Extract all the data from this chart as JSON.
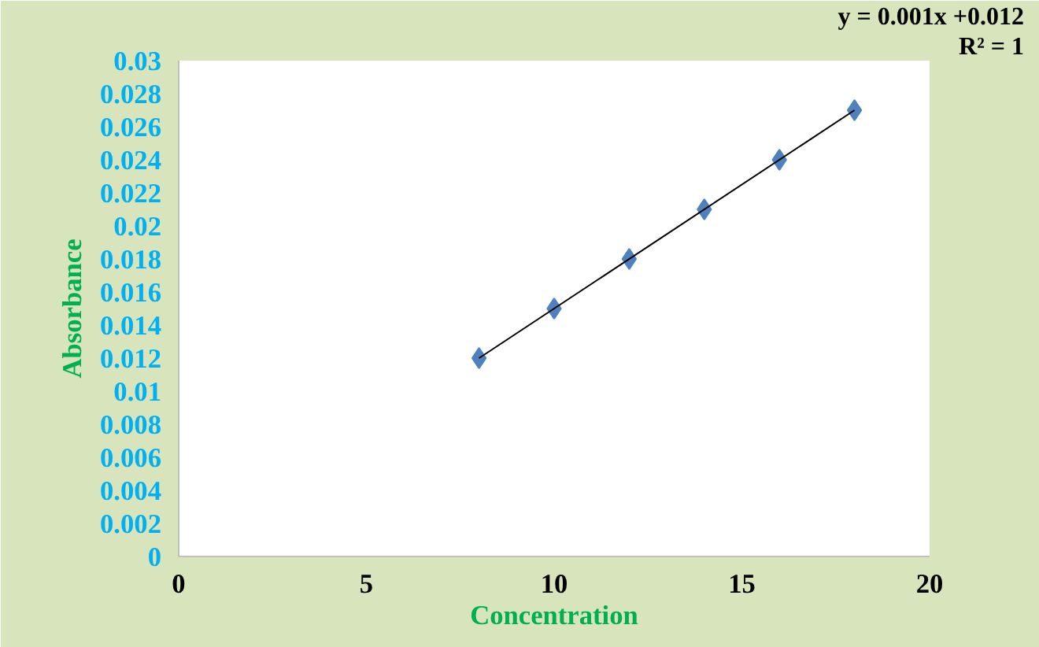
{
  "chart_data": {
    "type": "scatter",
    "xlabel": "Concentration",
    "ylabel": "Absorbance",
    "x": [
      8,
      10,
      12,
      14,
      16,
      18
    ],
    "series": [
      {
        "color": "#4f81bd",
        "marker": "diamond",
        "values": [
          0.012,
          0.015,
          0.018,
          0.021,
          0.024,
          0.027
        ]
      },
      {
        "type": "line",
        "color": "#000000",
        "x": [
          8,
          18
        ],
        "values": [
          0.012,
          0.027
        ]
      }
    ],
    "xlim": [
      0,
      20
    ],
    "xticks": [
      0,
      5,
      10,
      15,
      20
    ],
    "ylim": [
      0,
      0.03
    ],
    "yticks": [
      0,
      0.002,
      0.004,
      0.006,
      0.008,
      0.01,
      0.012,
      0.014,
      0.016,
      0.018,
      0.02,
      0.022,
      0.024,
      0.026,
      0.028,
      0.03
    ],
    "grid": false,
    "annotations": [
      "y = 0.001x +0.012",
      "R² = 1"
    ]
  }
}
